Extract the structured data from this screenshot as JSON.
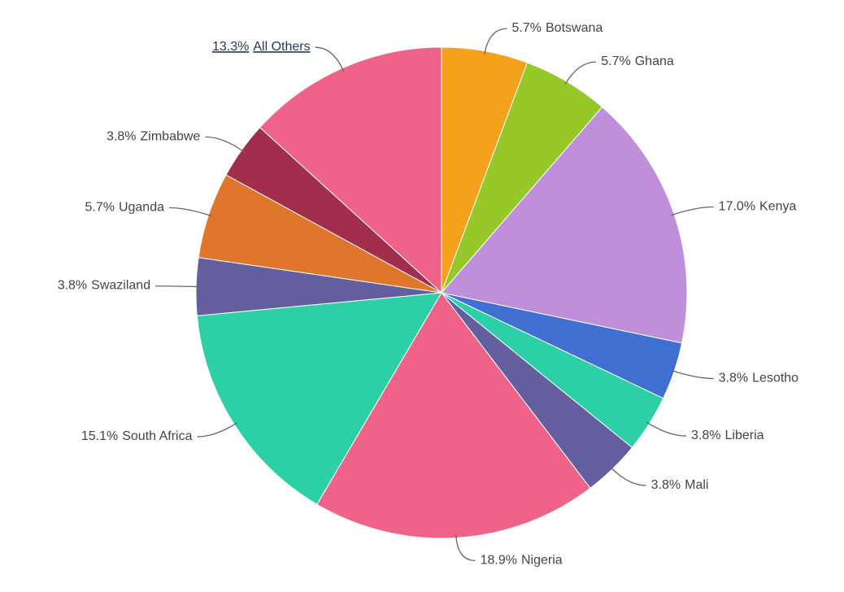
{
  "chart_data": {
    "type": "pie",
    "categories": [
      "Botswana",
      "Ghana",
      "Kenya",
      "Lesotho",
      "Liberia",
      "Mali",
      "Nigeria",
      "South Africa",
      "Swaziland",
      "Uganda",
      "Zimbabwe",
      "All Others"
    ],
    "values": [
      5.7,
      5.7,
      17.0,
      3.8,
      3.8,
      3.8,
      18.9,
      15.1,
      3.8,
      5.7,
      3.8,
      13.3
    ],
    "value_labels": [
      "5.7%",
      "5.7%",
      "17.0%",
      "3.8%",
      "3.8%",
      "3.8%",
      "18.9%",
      "15.1%",
      "3.8%",
      "5.7%",
      "3.8%",
      "13.3%"
    ],
    "colors": [
      "#f4a21c",
      "#97c82a",
      "#bf8fdb",
      "#3f6fd1",
      "#2dcfa6",
      "#635e9e",
      "#f06388",
      "#2dcfa6",
      "#635e9e",
      "#e0762c",
      "#a22e4c",
      "#f06388"
    ]
  }
}
